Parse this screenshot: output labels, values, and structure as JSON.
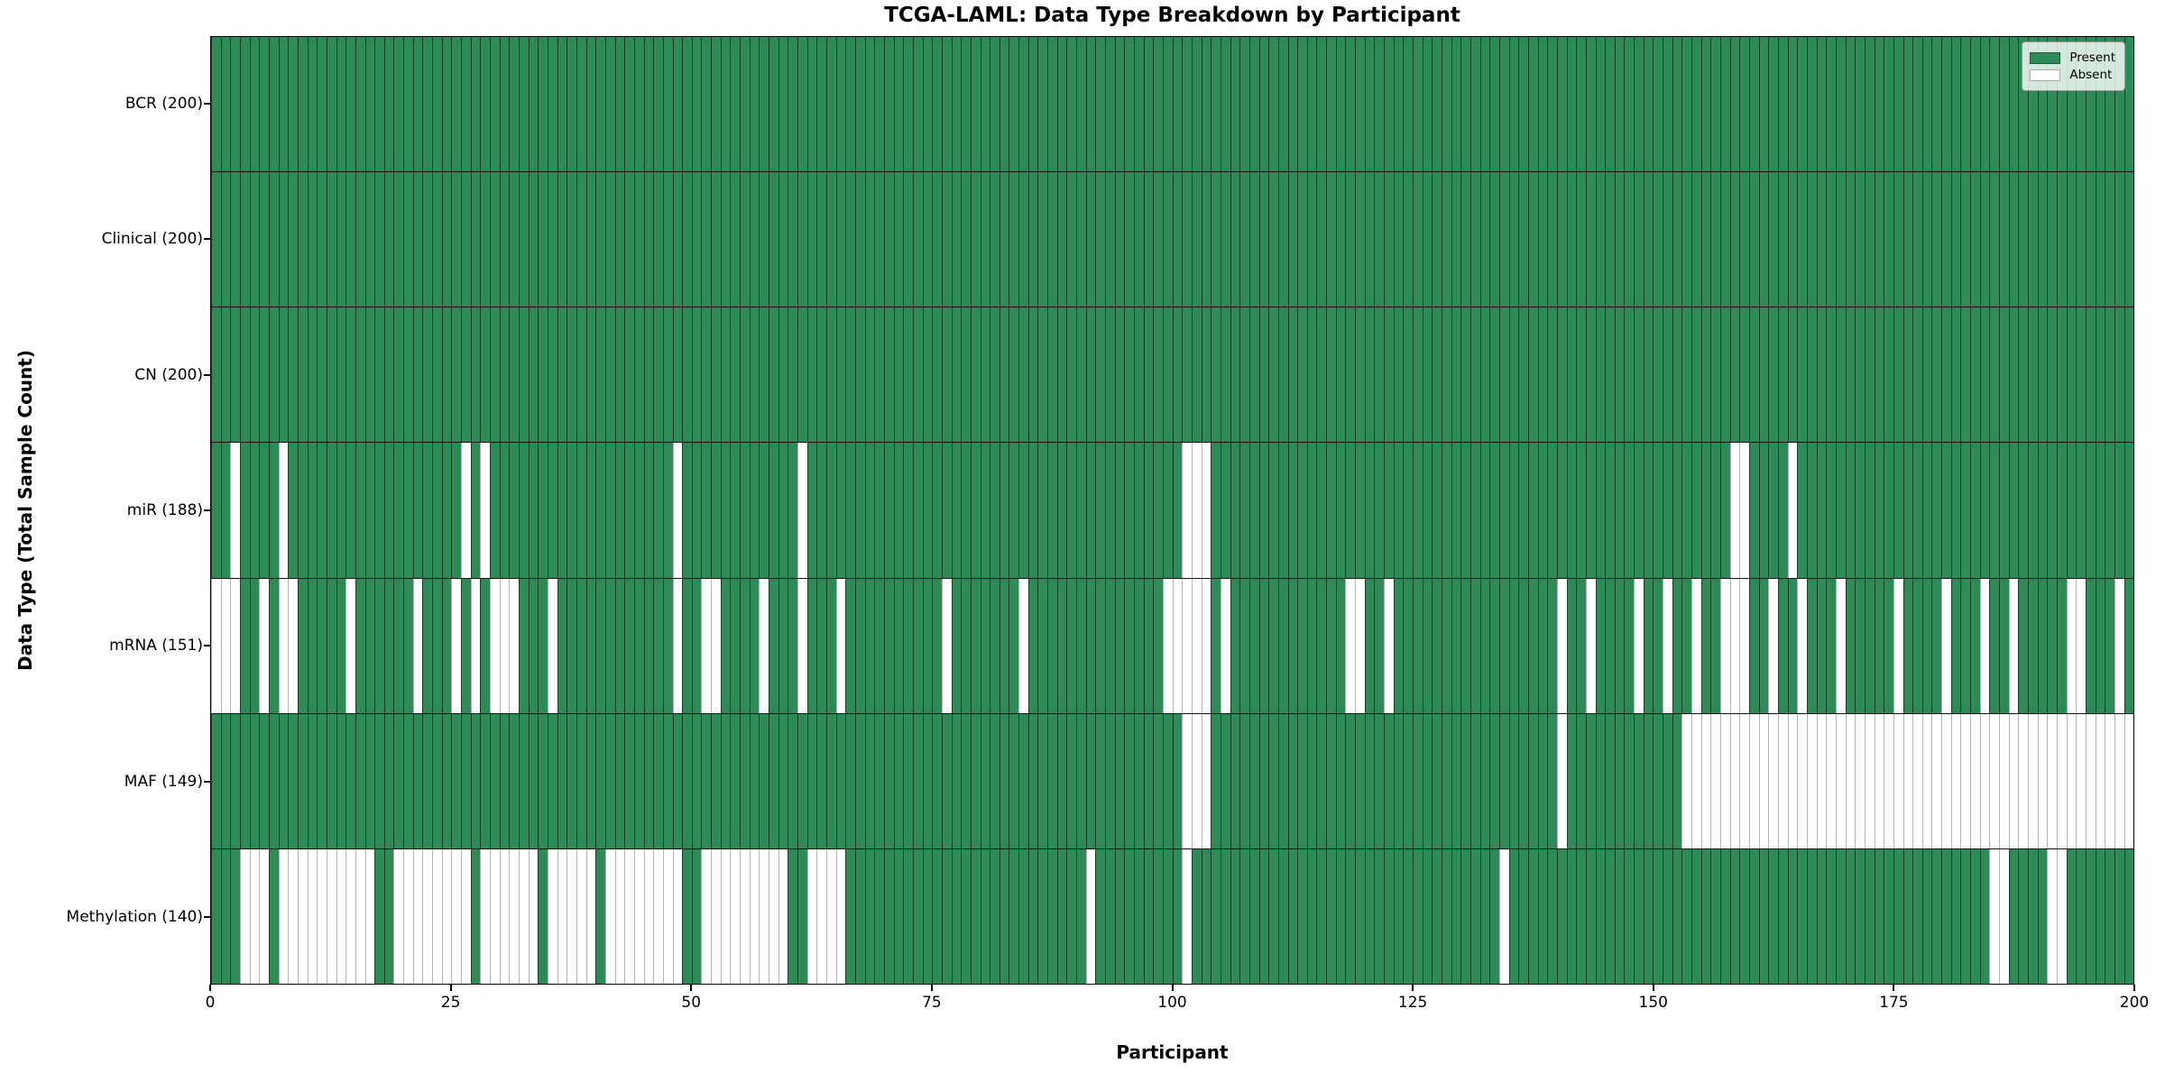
{
  "title": "TCGA-LAML: Data Type Breakdown by Participant",
  "xlabel": "Participant",
  "ylabel": "Data Type (Total Sample Count)",
  "legend": {
    "present_label": "Present",
    "absent_label": "Absent"
  },
  "colors": {
    "present": "#2e8b57",
    "absent": "#ffffff",
    "row_divider": "#111111",
    "axis": "#000000"
  },
  "x_ticks": [
    0,
    25,
    50,
    75,
    100,
    125,
    150,
    175,
    200
  ],
  "n_participants": 200,
  "chart_data": {
    "type": "heatmap",
    "title": "TCGA-LAML: Data Type Breakdown by Participant",
    "xlabel": "Participant",
    "ylabel": "Data Type (Total Sample Count)",
    "x_range": [
      0,
      200
    ],
    "grid": false,
    "legend_position": "upper right",
    "legend_entries": [
      "Present",
      "Absent"
    ],
    "rows": [
      {
        "label": "BCR (200)",
        "data_type": "BCR",
        "present_count": 200,
        "absent_participants": []
      },
      {
        "label": "Clinical (200)",
        "data_type": "Clinical",
        "present_count": 200,
        "absent_participants": []
      },
      {
        "label": "CN (200)",
        "data_type": "CN",
        "present_count": 200,
        "absent_participants": []
      },
      {
        "label": "miR (188)",
        "data_type": "miR",
        "present_count": 188,
        "absent_participants": [
          2,
          7,
          26,
          28,
          48,
          61,
          101,
          102,
          103,
          158,
          159,
          164
        ]
      },
      {
        "label": "mRNA (151)",
        "data_type": "mRNA",
        "present_count": 151,
        "absent_participants": [
          0,
          1,
          2,
          5,
          7,
          8,
          14,
          21,
          25,
          27,
          29,
          30,
          31,
          35,
          48,
          51,
          52,
          57,
          61,
          65,
          76,
          84,
          99,
          100,
          101,
          102,
          103,
          105,
          118,
          119,
          122,
          140,
          143,
          148,
          151,
          154,
          157,
          158,
          159,
          162,
          165,
          169,
          175,
          180,
          184,
          187,
          193,
          194,
          198
        ]
      },
      {
        "label": "MAF (149)",
        "data_type": "MAF",
        "present_count": 149,
        "absent_participants": [
          101,
          102,
          103,
          140,
          153,
          154,
          155,
          156,
          157,
          158,
          159,
          160,
          161,
          162,
          163,
          164,
          165,
          166,
          167,
          168,
          169,
          170,
          171,
          172,
          173,
          174,
          175,
          176,
          177,
          178,
          179,
          180,
          181,
          182,
          183,
          184,
          185,
          186,
          187,
          188,
          189,
          190,
          191,
          192,
          193,
          194,
          195,
          196,
          197,
          198,
          199
        ]
      },
      {
        "label": "Methylation (140)",
        "data_type": "Methylation",
        "present_count": 140,
        "absent_participants": [
          3,
          4,
          5,
          7,
          8,
          9,
          10,
          11,
          12,
          13,
          14,
          15,
          16,
          19,
          20,
          21,
          22,
          23,
          24,
          25,
          26,
          28,
          29,
          30,
          31,
          32,
          33,
          35,
          36,
          37,
          38,
          39,
          41,
          42,
          43,
          44,
          45,
          46,
          47,
          48,
          51,
          52,
          53,
          54,
          55,
          56,
          57,
          58,
          59,
          62,
          63,
          64,
          65,
          91,
          101,
          134,
          185,
          186,
          191,
          192
        ]
      }
    ]
  }
}
